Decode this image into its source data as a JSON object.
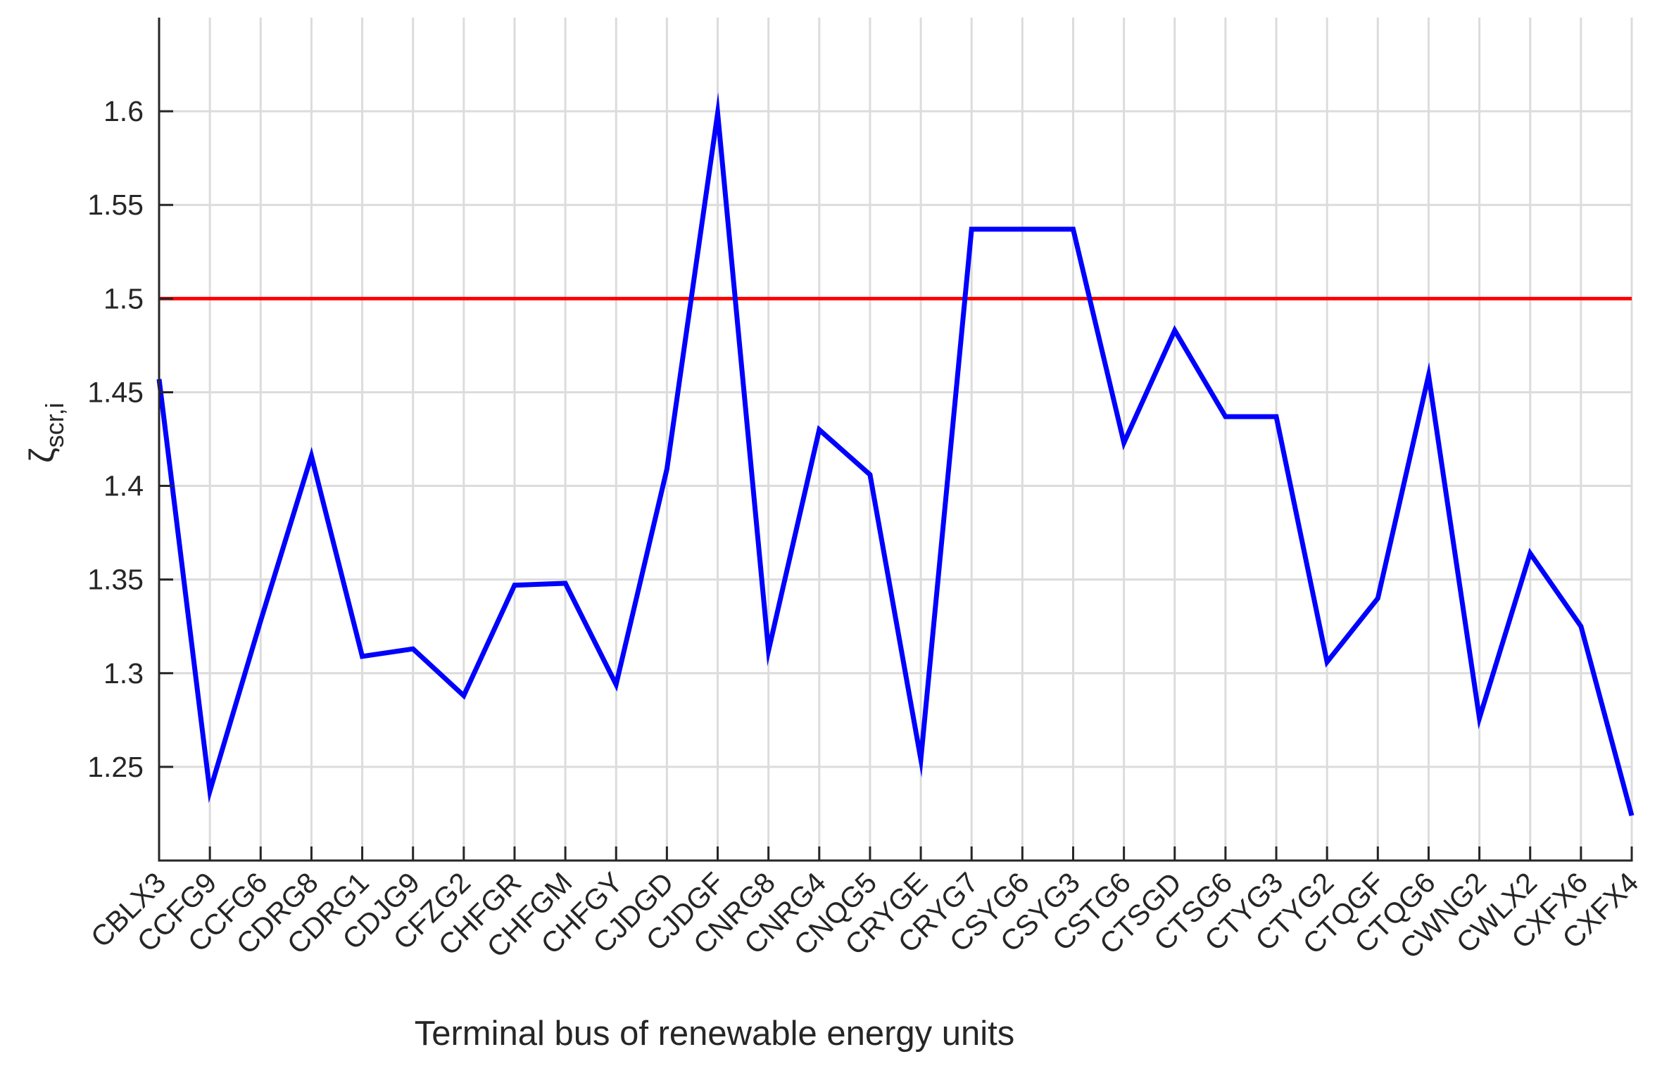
{
  "chart_data": {
    "type": "line",
    "title": "",
    "xlabel": "Terminal bus of renewable energy units",
    "ylabel": {
      "base": "ζ",
      "subscript": "scr,i"
    },
    "categories": [
      "CBLX3",
      "CCFG9",
      "CCFG6",
      "CDRG8",
      "CDRG1",
      "CDJG9",
      "CFZG2",
      "CHFGR",
      "CHFGM",
      "CHFGY",
      "CJDGD",
      "CJDGF",
      "CNRG8",
      "CNRG4",
      "CNQG5",
      "CRYGE",
      "CRYG7",
      "CSYG6",
      "CSYG3",
      "CSTG6",
      "CTSGD",
      "CTSG6",
      "CTYG3",
      "CTYG2",
      "CTQGF",
      "CTQG6",
      "CWNG2",
      "CWLX2",
      "CXFX6",
      "CXFX4"
    ],
    "series": [
      {
        "values": [
          1.457,
          1.237,
          1.328,
          1.416,
          1.309,
          1.313,
          1.288,
          1.347,
          1.348,
          1.294,
          1.409,
          1.599,
          1.312,
          1.43,
          1.406,
          1.254,
          1.537,
          1.537,
          1.537,
          1.423,
          1.483,
          1.437,
          1.437,
          1.306,
          1.34,
          1.459,
          1.276,
          1.364,
          1.325,
          1.224
        ],
        "color": "#0000ff"
      }
    ],
    "reference_line": {
      "y": 1.5,
      "color": "#ff0000"
    },
    "ylim": [
      1.2,
      1.65
    ],
    "yticks": [
      "1.25",
      "1.3",
      "1.35",
      "1.4",
      "1.45",
      "1.5",
      "1.55",
      "1.6"
    ],
    "grid": true,
    "legend": "none"
  }
}
